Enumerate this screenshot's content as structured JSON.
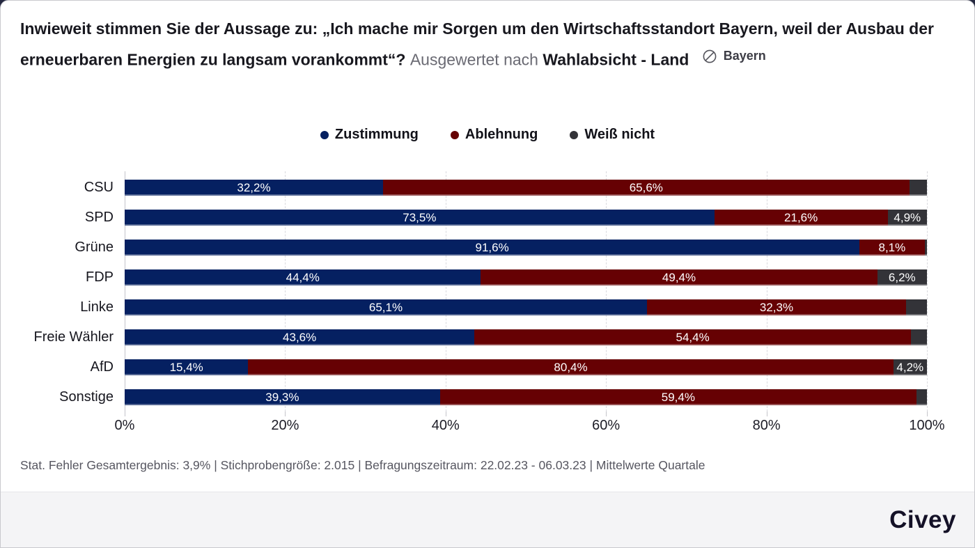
{
  "header": {
    "question": "Inwieweit stimmen Sie der Aussage zu: „Ich mache mir Sorgen um den Wirtschaftsstandort Bayern, weil der Ausbau der erneuerbaren Energien zu langsam vorankommt“?",
    "analysis_prefix": "Ausgewertet nach",
    "analysis_dimension": "Wahlabsicht - Land",
    "region": "Bayern"
  },
  "chart_data": {
    "type": "bar",
    "orientation": "horizontal",
    "stacked": true,
    "unit": "%",
    "categories": [
      "CSU",
      "SPD",
      "Grüne",
      "FDP",
      "Linke",
      "Freie Wähler",
      "AfD",
      "Sonstige"
    ],
    "series": [
      {
        "name": "Zustimmung",
        "color": "#052061",
        "values": [
          32.2,
          73.5,
          91.6,
          44.4,
          65.1,
          43.6,
          15.4,
          39.3
        ],
        "labels": [
          "32,2%",
          "73,5%",
          "91,6%",
          "44,4%",
          "65,1%",
          "43,6%",
          "15,4%",
          "39,3%"
        ]
      },
      {
        "name": "Ablehnung",
        "color": "#660103",
        "values": [
          65.6,
          21.6,
          8.1,
          49.4,
          32.3,
          54.4,
          80.4,
          59.4
        ],
        "labels": [
          "65,6%",
          "21,6%",
          "8,1%",
          "49,4%",
          "32,3%",
          "54,4%",
          "80,4%",
          "59,4%"
        ]
      },
      {
        "name": "Weiß nicht",
        "color": "#333338",
        "values": [
          2.2,
          4.9,
          0.3,
          6.2,
          2.6,
          2.0,
          4.2,
          1.3
        ],
        "labels": [
          "",
          "4,9%",
          "",
          "6,2%",
          "",
          "",
          "4,2%",
          ""
        ]
      }
    ],
    "x_tick_labels": [
      "0%",
      "20%",
      "40%",
      "60%",
      "80%",
      "100%"
    ],
    "x_tick_values": [
      0,
      20,
      40,
      60,
      80,
      100
    ],
    "xlim": [
      0,
      100
    ],
    "grid": "vertical-dashed",
    "legend_position": "top-center"
  },
  "footer": {
    "source_note": "Stat. Fehler Gesamtergebnis: 3,9% | Stichprobengröße: 2.015 | Befragungszeitraum: 22.02.23 - 06.03.23 | Mittelwerte Quartale",
    "brand": "Civey"
  }
}
